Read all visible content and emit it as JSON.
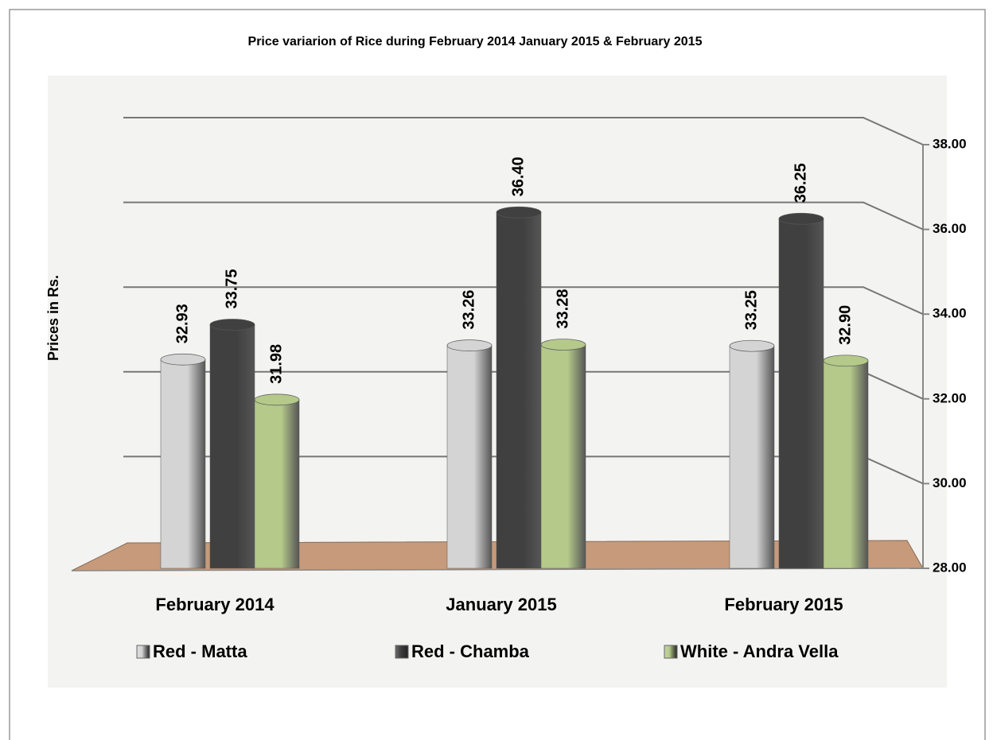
{
  "chart_data": {
    "type": "bar",
    "title": "Price variarion of Rice during February 2014 January 2015 & February 2015",
    "y_label": "Prices in Rs.",
    "categories": [
      "February 2014",
      "January 2015",
      "February 2015"
    ],
    "series": [
      {
        "name": "Red - Matta",
        "color": "#d4d4d4",
        "values": [
          32.93,
          33.26,
          33.25
        ],
        "value_labels": [
          "32.93",
          "33.26",
          "33.25"
        ]
      },
      {
        "name": "Red - Chamba",
        "color": "#404040",
        "values": [
          33.75,
          36.4,
          36.25
        ],
        "value_labels": [
          "33.75",
          "36.40",
          "36.25"
        ]
      },
      {
        "name": "White - Andra Vella",
        "color": "#b4c98a",
        "values": [
          31.98,
          33.28,
          32.9
        ],
        "value_labels": [
          "31.98",
          "33.28",
          "32.90"
        ]
      }
    ],
    "ylim": [
      28,
      38
    ],
    "yticks": [
      {
        "value": 28,
        "label": "28.00"
      },
      {
        "value": 30,
        "label": "30.00"
      },
      {
        "value": 32,
        "label": "32.00"
      },
      {
        "value": 34,
        "label": "34.00"
      },
      {
        "value": 36,
        "label": "36.00"
      },
      {
        "value": 38,
        "label": "38.00"
      }
    ],
    "grid": true,
    "legend": "bottom"
  }
}
